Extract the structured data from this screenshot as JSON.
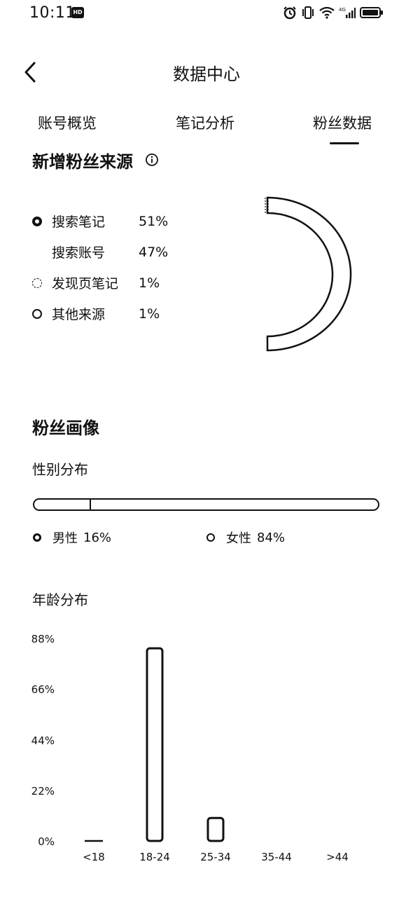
{
  "status_bar": {
    "time": "10:11",
    "badge": "HD",
    "icons": [
      "alarm-icon",
      "vibrate-icon",
      "wifi-icon",
      "signal-icon",
      "battery-icon"
    ]
  },
  "header": {
    "title": "数据中心",
    "back_icon": "chevron-left-icon"
  },
  "tabs": [
    {
      "label": "账号概览",
      "active": false
    },
    {
      "label": "笔记分析",
      "active": false
    },
    {
      "label": "粉丝数据",
      "active": true
    }
  ],
  "source_section": {
    "title": "新增粉丝来源",
    "info_icon": "info-icon",
    "items": [
      {
        "name": "搜索笔记",
        "percent": "51%"
      },
      {
        "name": "搜索账号",
        "percent": "47%"
      },
      {
        "name": "发现页笔记",
        "percent": "1%"
      },
      {
        "name": "其他来源",
        "percent": "1%"
      }
    ]
  },
  "portrait_section": {
    "title": "粉丝画像",
    "gender": {
      "title": "性别分布",
      "male_fraction": 0.16,
      "male": {
        "label": "男性",
        "percent": "16%"
      },
      "female": {
        "label": "女性",
        "percent": "84%"
      }
    },
    "age": {
      "title": "年龄分布"
    }
  },
  "chart_data": {
    "type": "bar",
    "categories": [
      "<18",
      "18-24",
      "25-34",
      "35-44",
      ">44"
    ],
    "values": [
      0.5,
      84,
      10,
      0,
      0
    ],
    "y_ticks": [
      "88%",
      "66%",
      "44%",
      "22%",
      "0%"
    ],
    "ylim": [
      0,
      88
    ],
    "grid": false
  },
  "colors": {
    "text": "#111111",
    "background": "#ffffff"
  }
}
